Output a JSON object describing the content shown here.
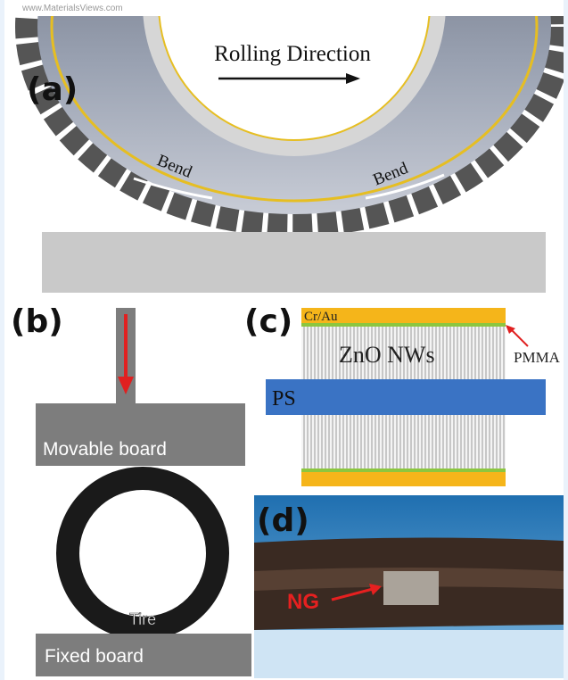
{
  "header": {
    "source": "www.MaterialsViews.com"
  },
  "panel_a": {
    "label": "(a)",
    "rolling_direction": "Rolling Direction",
    "bend_left": "Bend",
    "bend_right": "Bend"
  },
  "panel_b": {
    "label": "(b)",
    "movable_board": "Movable board",
    "tire": "Tire",
    "fixed_board": "Fixed board"
  },
  "panel_c": {
    "label": "(c)",
    "electrode": "Cr/Au",
    "nanowires": "ZnO NWs",
    "pmma": "PMMA",
    "substrate": "PS"
  },
  "panel_d": {
    "label": "(d)",
    "generator": "NG"
  }
}
